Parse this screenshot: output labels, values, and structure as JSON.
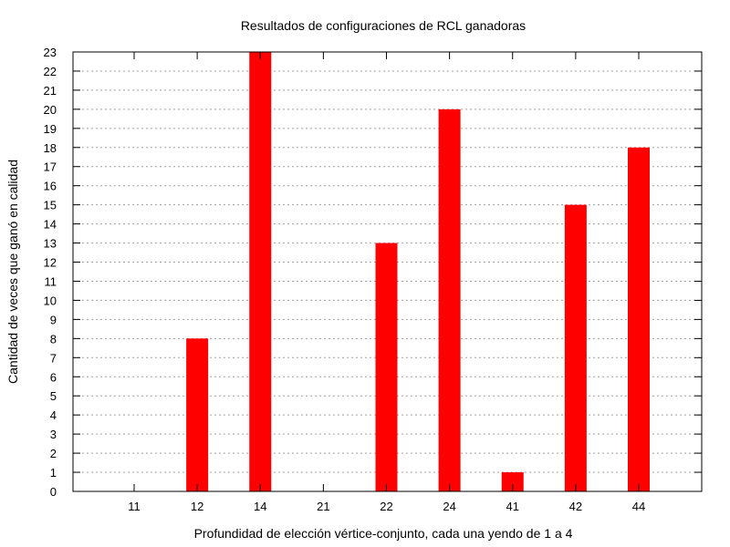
{
  "chart_data": {
    "type": "bar",
    "title": "Resultados de configuraciones de RCL ganadoras",
    "xlabel": "Profundidad de elección vértice-conjunto, cada una yendo de 1 a 4",
    "ylabel": "Cantidad de veces que ganó en calidad",
    "categories": [
      "11",
      "12",
      "14",
      "21",
      "22",
      "24",
      "41",
      "42",
      "44"
    ],
    "values": [
      0,
      8,
      23,
      0,
      13,
      20,
      1,
      15,
      18
    ],
    "ylim": [
      0,
      23
    ],
    "yticks": [
      0,
      1,
      2,
      3,
      4,
      5,
      6,
      7,
      8,
      9,
      10,
      11,
      12,
      13,
      14,
      15,
      16,
      17,
      18,
      19,
      20,
      21,
      22,
      23
    ],
    "grid": true,
    "legend": "none",
    "bar_color": "#ff0000",
    "grid_color": "#a0a0a0"
  }
}
